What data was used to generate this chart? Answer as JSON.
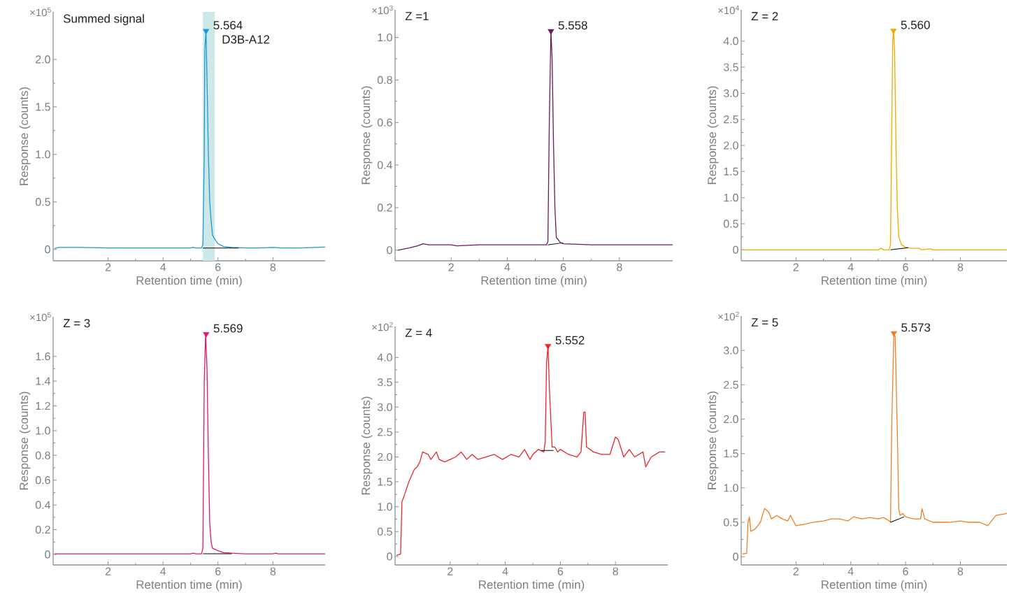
{
  "chart_data": [
    {
      "type": "line",
      "xlabel": "Retention time (min)",
      "ylabel": "Response (counts)",
      "annotations": [
        "×10$^{5}$",
        "Summed signal",
        {
          "text": "5.564",
          "x": 5.564,
          "y": 2.3
        },
        {
          "text": "D3B-A12",
          "x": 5.88,
          "y": 2.15
        }
      ],
      "xlim": [
        0,
        9.9
      ],
      "ylim": [
        -0.12,
        2.5
      ],
      "xticks": [
        2,
        4,
        6,
        8
      ],
      "yticks": [
        0,
        0.5,
        {
          "value": 1,
          "label": "1.0"
        },
        1.5,
        {
          "value": 2,
          "label": "2.0"
        }
      ],
      "bands": [
        {
          "axis": "x",
          "from": 5.45,
          "to": 5.88,
          "color": "#cde8e8"
        }
      ],
      "series": [
        {
          "type": "line",
          "color": "#1a9bd7",
          "x": [
            0.05,
            0.2,
            1.0,
            2,
            3,
            4,
            5,
            5.1,
            5.2,
            5.4,
            5.45,
            5.5,
            5.52,
            5.564,
            5.6,
            5.65,
            5.7,
            5.75,
            5.8,
            5.9,
            6.0,
            6.2,
            6.5,
            7,
            7.5,
            8,
            8.3,
            9,
            9.5,
            9.9
          ],
          "values": [
            0.01,
            0.02,
            0.02,
            0.015,
            0.015,
            0.015,
            0.015,
            0.02,
            0.015,
            0.015,
            0.05,
            1.0,
            2.1,
            2.3,
            1.8,
            1.0,
            0.5,
            0.3,
            0.15,
            0.1,
            0.06,
            0.03,
            0.02,
            0.015,
            0.015,
            0.02,
            0.015,
            0.015,
            0.02,
            0.025
          ]
        },
        {
          "type": "line",
          "color": "#000000",
          "x": [
            5.45,
            6.75
          ],
          "values": [
            0.015,
            0.015
          ]
        },
        {
          "type": "scatter",
          "marker": "triangle",
          "color": "#1a9bd7",
          "x": [
            5.564
          ],
          "values": [
            2.3
          ]
        }
      ]
    },
    {
      "type": "line",
      "xlabel": "Retention time (min)",
      "ylabel": "Response (counts)",
      "annotations": [
        "×10$^{3}$",
        "Z =1",
        {
          "text": "5.558",
          "x": 5.558,
          "y": 1.03
        }
      ],
      "xlim": [
        0,
        9.9
      ],
      "ylim": [
        -0.05,
        1.13
      ],
      "xticks": [
        2,
        4,
        6,
        8
      ],
      "yticks": [
        0,
        0.2,
        0.4,
        0.6,
        0.8,
        {
          "value": 1,
          "label": "1.0"
        }
      ],
      "series": [
        {
          "type": "line",
          "color": "#6b1a5a",
          "x": [
            0.1,
            0.5,
            0.8,
            1.0,
            1.2,
            2,
            2.2,
            3,
            4,
            5,
            5.4,
            5.45,
            5.5,
            5.558,
            5.6,
            5.65,
            5.7,
            5.75,
            5.9,
            6,
            7,
            8,
            9,
            9.9
          ],
          "values": [
            0.0,
            0.01,
            0.02,
            0.03,
            0.025,
            0.025,
            0.02,
            0.025,
            0.025,
            0.025,
            0.025,
            0.04,
            0.6,
            1.03,
            0.9,
            0.5,
            0.2,
            0.06,
            0.035,
            0.03,
            0.025,
            0.025,
            0.025,
            0.025
          ]
        },
        {
          "type": "line",
          "color": "#000000",
          "x": [
            5.45,
            6.0
          ],
          "values": [
            0.025,
            0.035
          ]
        },
        {
          "type": "scatter",
          "marker": "triangle",
          "color": "#6b1a5a",
          "x": [
            5.558
          ],
          "values": [
            1.03
          ]
        }
      ]
    },
    {
      "type": "line",
      "xlabel": "Retention time (min)",
      "ylabel": "Response (counts)",
      "annotations": [
        "×10$^{4}$",
        "Z = 2",
        {
          "text": "5.560",
          "x": 5.56,
          "y": 4.2
        }
      ],
      "xlim": [
        0,
        9.7
      ],
      "ylim": [
        -0.21,
        4.6
      ],
      "xticks": [
        2,
        4,
        6,
        8
      ],
      "yticks": [
        0,
        0.5,
        {
          "value": 1,
          "label": "1.0"
        },
        1.5,
        {
          "value": 2,
          "label": "2.0"
        },
        2.5,
        {
          "value": 3,
          "label": "3.0"
        },
        3.5,
        {
          "value": 4,
          "label": "4.0"
        }
      ],
      "series": [
        {
          "type": "line",
          "color": "#f5a800",
          "x": [
            0.05,
            5.0,
            5.1,
            5.2,
            5.4,
            5.45,
            5.5,
            5.53,
            5.56,
            5.6,
            5.65,
            5.7,
            5.75,
            5.85,
            6.0,
            6.2,
            6.5,
            6.6,
            6.9,
            7,
            8,
            9.7
          ],
          "values": [
            0,
            0,
            0.03,
            0,
            0,
            0.1,
            2.5,
            4.0,
            4.2,
            3.8,
            2.0,
            0.8,
            0.25,
            0.1,
            0.05,
            0.03,
            0.03,
            0,
            0.02,
            0,
            0,
            0
          ]
        },
        {
          "type": "line",
          "color": "#000000",
          "x": [
            5.45,
            6.1
          ],
          "values": [
            0.0,
            0.04
          ]
        },
        {
          "type": "scatter",
          "marker": "triangle",
          "color": "#f5a800",
          "x": [
            5.56
          ],
          "values": [
            4.2
          ]
        }
      ]
    },
    {
      "type": "line",
      "xlabel": "Retention time (min)",
      "ylabel": "Response (counts)",
      "annotations": [
        "×10$^{5}$",
        "Z = 3",
        {
          "text": "5.569",
          "x": 5.569,
          "y": 1.78
        }
      ],
      "xlim": [
        0,
        9.9
      ],
      "ylim": [
        -0.085,
        1.92
      ],
      "xticks": [
        2,
        4,
        6,
        8
      ],
      "yticks": [
        0,
        0.2,
        0.4,
        0.6,
        0.8,
        {
          "value": 1,
          "label": "1.0"
        },
        1.2,
        1.4,
        1.6
      ],
      "series": [
        {
          "type": "line",
          "color": "#e5156f",
          "x": [
            0.05,
            5.0,
            5.1,
            5.2,
            5.4,
            5.45,
            5.5,
            5.55,
            5.6,
            5.65,
            5.7,
            5.75,
            5.8,
            6.0,
            6.2,
            6.5,
            7,
            8,
            8.1,
            8.2,
            9.9
          ],
          "values": [
            0.005,
            0.005,
            0.01,
            0.005,
            0.005,
            0.05,
            1.4,
            1.78,
            1.5,
            0.8,
            0.25,
            0.1,
            0.05,
            0.03,
            0.015,
            0.01,
            0.005,
            0.005,
            0.01,
            0.005,
            0.005
          ]
        },
        {
          "type": "line",
          "color": "#000000",
          "x": [
            5.45,
            6.5
          ],
          "values": [
            0.005,
            0.005
          ]
        },
        {
          "type": "scatter",
          "marker": "triangle",
          "color": "#e5156f",
          "x": [
            5.569
          ],
          "values": [
            1.78
          ]
        }
      ]
    },
    {
      "type": "line",
      "xlabel": "Retention time (min)",
      "ylabel": "Response (counts)",
      "annotations": [
        "×10$^{2}$",
        "Z = 4",
        {
          "text": "5.552",
          "x": 5.552,
          "y": 4.23
        }
      ],
      "xlim": [
        0,
        9.9
      ],
      "ylim": [
        -0.17,
        4.62
      ],
      "xticks": [
        2,
        4,
        6,
        8
      ],
      "yticks": [
        0,
        0.5,
        {
          "value": 1,
          "label": "1.0"
        },
        1.5,
        {
          "value": 2,
          "label": "2.0"
        },
        2.5,
        {
          "value": 3,
          "label": "3.0"
        },
        3.5,
        {
          "value": 4,
          "label": "4.0"
        }
      ],
      "series": [
        {
          "type": "line",
          "color": "#e8262a",
          "x": [
            0.05,
            0.2,
            0.25,
            0.35,
            0.5,
            0.7,
            0.8,
            0.9,
            1.0,
            1.2,
            1.3,
            1.5,
            1.6,
            1.8,
            2.0,
            2.2,
            2.4,
            2.6,
            2.8,
            3.0,
            3.3,
            3.6,
            3.9,
            4.2,
            4.5,
            4.7,
            4.9,
            5.0,
            5.2,
            5.4,
            5.45,
            5.5,
            5.552,
            5.6,
            5.65,
            5.7,
            5.8,
            5.9,
            6.0,
            6.3,
            6.6,
            6.75,
            6.85,
            6.9,
            6.95,
            7.2,
            7.5,
            7.8,
            8.0,
            8.1,
            8.3,
            8.5,
            8.7,
            9.0,
            9.1,
            9.3,
            9.6,
            9.8
          ],
          "values": [
            0.02,
            0.05,
            1.1,
            1.25,
            1.5,
            1.75,
            1.8,
            1.9,
            2.1,
            2.05,
            1.95,
            2.1,
            1.95,
            1.9,
            1.95,
            2.0,
            2.1,
            1.95,
            2.05,
            1.95,
            2.0,
            2.05,
            1.95,
            2.05,
            2.0,
            2.15,
            1.95,
            2.05,
            2.15,
            2.1,
            2.3,
            3.9,
            4.23,
            3.4,
            2.8,
            2.2,
            2.2,
            2.1,
            2.15,
            2.05,
            2.0,
            2.1,
            2.9,
            2.9,
            2.2,
            2.1,
            2.05,
            2.05,
            2.4,
            2.35,
            2.0,
            2.15,
            2.0,
            2.1,
            1.8,
            2.0,
            2.1,
            2.1
          ]
        },
        {
          "type": "line",
          "color": "#000000",
          "x": [
            5.3,
            5.75
          ],
          "values": [
            2.13,
            2.13
          ]
        },
        {
          "type": "scatter",
          "marker": "triangle",
          "color": "#e8262a",
          "x": [
            5.552
          ],
          "values": [
            4.23
          ]
        }
      ]
    },
    {
      "type": "line",
      "xlabel": "Retention time (min)",
      "ylabel": "Response (counts)",
      "annotations": [
        "×10$^{2}$",
        "Z = 5",
        {
          "text": "5.573",
          "x": 5.573,
          "y": 3.25
        }
      ],
      "xlim": [
        0,
        9.7
      ],
      "ylim": [
        -0.12,
        3.5
      ],
      "xticks": [
        2,
        4,
        6,
        8
      ],
      "yticks": [
        0,
        0.5,
        {
          "value": 1,
          "label": "1.0"
        },
        1.5,
        {
          "value": 2,
          "label": "2.0"
        },
        2.5,
        {
          "value": 3,
          "label": "3.0"
        }
      ],
      "series": [
        {
          "type": "line",
          "color": "#f07f22",
          "x": [
            0.05,
            0.2,
            0.25,
            0.3,
            0.35,
            0.5,
            0.7,
            0.85,
            1.0,
            1.1,
            1.3,
            1.5,
            1.7,
            1.8,
            2.0,
            2.3,
            2.6,
            3.0,
            3.3,
            3.6,
            3.9,
            4.1,
            4.4,
            4.7,
            5.0,
            5.2,
            5.4,
            5.45,
            5.5,
            5.573,
            5.62,
            5.7,
            5.75,
            5.8,
            5.9,
            6.0,
            6.3,
            6.55,
            6.6,
            6.7,
            7.0,
            7.3,
            7.6,
            8.0,
            8.3,
            8.7,
            9.0,
            9.3,
            9.6,
            9.7
          ],
          "values": [
            0.04,
            0.05,
            0.5,
            0.58,
            0.37,
            0.4,
            0.5,
            0.7,
            0.65,
            0.55,
            0.6,
            0.55,
            0.52,
            0.6,
            0.45,
            0.47,
            0.5,
            0.52,
            0.55,
            0.55,
            0.52,
            0.58,
            0.55,
            0.57,
            0.55,
            0.57,
            0.52,
            0.5,
            2.0,
            3.25,
            3.2,
            1.8,
            0.7,
            0.6,
            0.63,
            0.58,
            0.55,
            0.55,
            0.7,
            0.55,
            0.5,
            0.5,
            0.5,
            0.52,
            0.5,
            0.5,
            0.45,
            0.6,
            0.62,
            0.63
          ]
        },
        {
          "type": "line",
          "color": "#000000",
          "x": [
            5.45,
            5.95
          ],
          "values": [
            0.5,
            0.58
          ]
        },
        {
          "type": "scatter",
          "marker": "triangle",
          "color": "#f07f22",
          "x": [
            5.573
          ],
          "values": [
            3.25
          ]
        }
      ]
    }
  ]
}
